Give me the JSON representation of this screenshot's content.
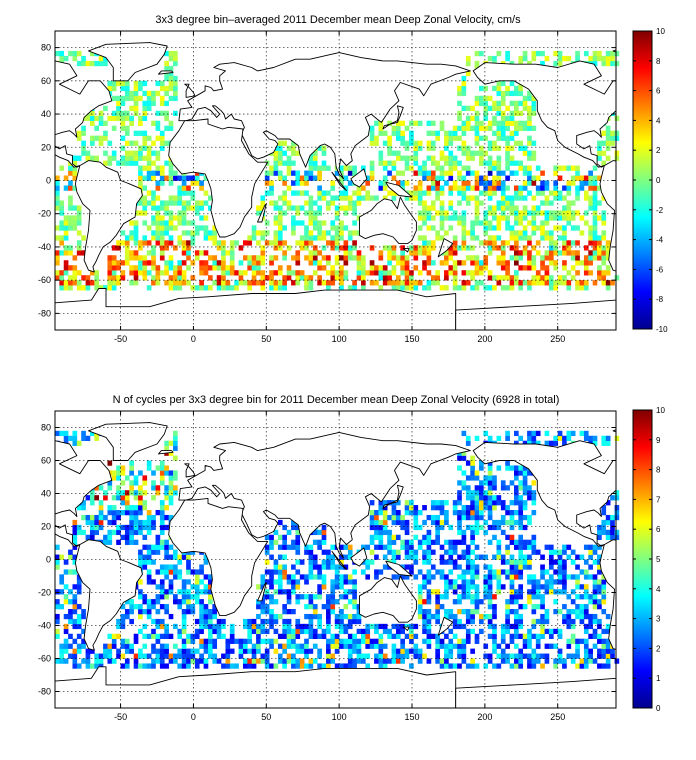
{
  "chart_data": [
    {
      "type": "heatmap",
      "title": "3x3 degree bin–averaged 2011 December mean Deep Zonal Velocity, cm/s",
      "xlabel": "",
      "ylabel": "",
      "xlim": [
        -95,
        290
      ],
      "ylim": [
        -90,
        90
      ],
      "xticks": [
        -50,
        0,
        50,
        100,
        150,
        200,
        250
      ],
      "yticks": [
        -80,
        -60,
        -40,
        -20,
        0,
        20,
        40,
        60,
        80
      ],
      "colorbar": {
        "min": -10,
        "max": 10,
        "ticks": [
          -10,
          -8,
          -6,
          -4,
          -2,
          0,
          2,
          4,
          6,
          8,
          10
        ],
        "colormap": "jet"
      },
      "grid": true,
      "bin_size_deg": 3
    },
    {
      "type": "heatmap",
      "title": "N of cycles per 3x3 degree bin for 2011 December mean Deep Zonal Velocity (6928 in total)",
      "xlabel": "",
      "ylabel": "",
      "xlim": [
        -95,
        290
      ],
      "ylim": [
        -90,
        90
      ],
      "xticks": [
        -50,
        0,
        50,
        100,
        150,
        200,
        250
      ],
      "yticks": [
        -80,
        -60,
        -40,
        -20,
        0,
        20,
        40,
        60,
        80
      ],
      "colorbar": {
        "min": 0,
        "max": 10,
        "ticks": [
          0,
          1,
          2,
          3,
          4,
          5,
          6,
          7,
          8,
          9,
          10
        ],
        "colormap": "jet"
      },
      "grid": true,
      "bin_size_deg": 3,
      "total_cycles": 6928
    }
  ]
}
